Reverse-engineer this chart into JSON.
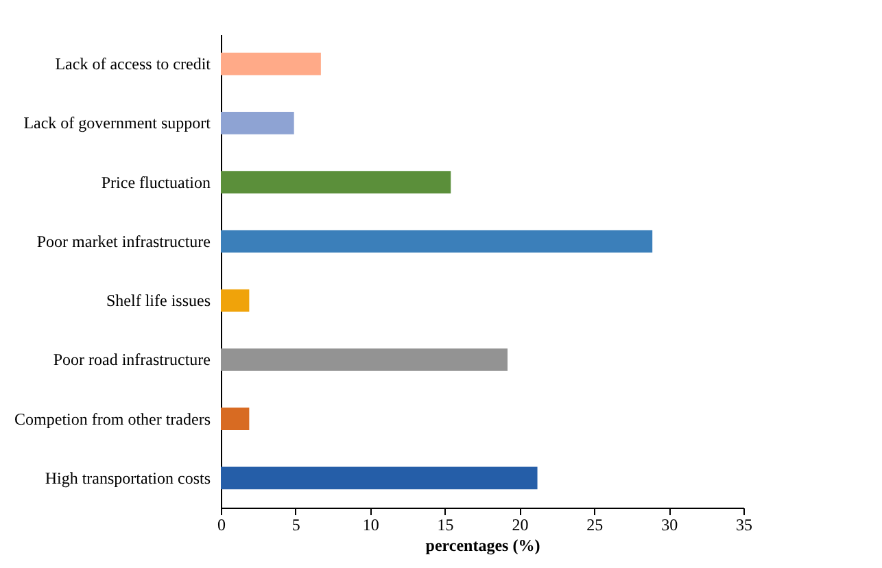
{
  "chart_data": {
    "type": "bar",
    "orientation": "horizontal",
    "xlabel": "percentages (%)",
    "categories": [
      "Lack of access to credit",
      "Lack of government support",
      "Price fluctuation",
      "Poor market infrastructure",
      "Shelf life issues",
      "Poor road infrastructure",
      "Competion from other traders",
      "High transportation costs"
    ],
    "values": [
      6.7,
      4.9,
      15.4,
      28.9,
      1.9,
      19.2,
      1.9,
      21.2
    ],
    "colors": [
      "#ffaa88",
      "#8ea3d3",
      "#5b8f3a",
      "#3b7fba",
      "#f0a30a",
      "#939393",
      "#d86b22",
      "#255ea8"
    ],
    "xlim": [
      0,
      35
    ],
    "xticks": [
      0,
      5,
      10,
      15,
      20,
      25,
      30,
      35
    ],
    "grid": false
  }
}
